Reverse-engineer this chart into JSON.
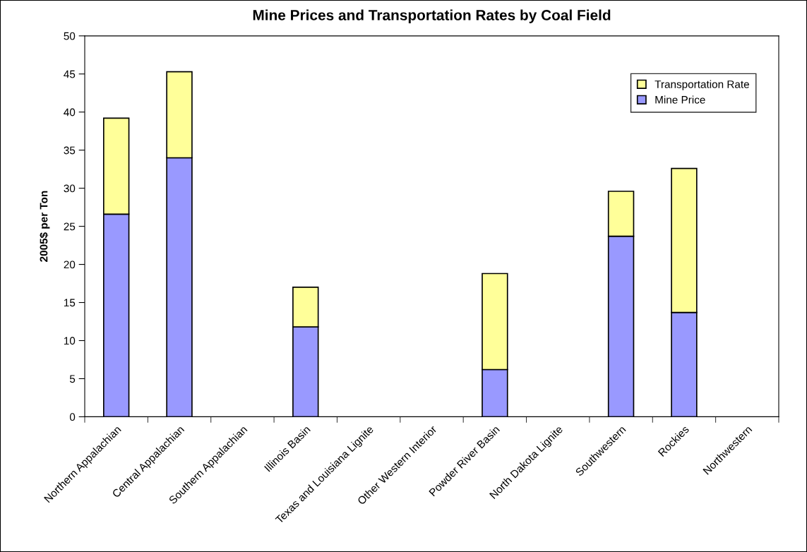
{
  "chart_data": {
    "type": "bar",
    "title": "Mine Prices and Transportation Rates by Coal Field",
    "ylabel": "2005$ per Ton",
    "categories": [
      "Northern Appalachian",
      "Central Appalachian",
      "Southern Appalachian",
      "Illinois Basin",
      "Texas and Louisiana Lignite",
      "Other Western Interior",
      "Powder River Basin",
      "North Dakota Lignite",
      "Southwestern",
      "Rockies",
      "Northwestern"
    ],
    "stacked": true,
    "series": [
      {
        "name": "Mine Price",
        "color": "#9999ff",
        "values": [
          26.6,
          34.0,
          null,
          11.8,
          null,
          null,
          6.2,
          null,
          23.7,
          13.7,
          null
        ]
      },
      {
        "name": "Transportation Rate",
        "color": "#ffff99",
        "values": [
          12.6,
          11.3,
          null,
          5.2,
          null,
          null,
          12.6,
          null,
          5.9,
          18.9,
          null
        ]
      }
    ],
    "ylim": [
      0,
      50
    ],
    "yticks": [
      0,
      5,
      10,
      15,
      20,
      25,
      30,
      35,
      40,
      45,
      50
    ],
    "grid": false,
    "legend": "top right"
  }
}
